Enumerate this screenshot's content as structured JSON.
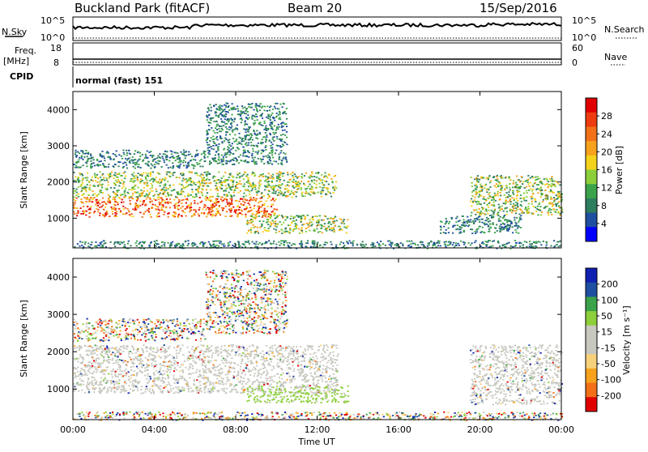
{
  "header": {
    "station": "Buckland Park (fitACF)",
    "beam": "Beam 20",
    "date": "15/Sep/2016"
  },
  "status_panels": {
    "nsky": {
      "label": "N.Sky",
      "ticks": [
        "10^5",
        "10^0"
      ]
    },
    "nsearch": {
      "label": "N.Search",
      "ticks": [
        "10^5",
        "10^0"
      ]
    },
    "freq": {
      "label_line1": "Freq.",
      "label_line2": "[MHz]",
      "ticks": [
        "18",
        "8"
      ]
    },
    "nave": {
      "label": "Nave",
      "ticks": [
        "60",
        "0"
      ]
    },
    "cpid": {
      "label": "CPID",
      "value": "normal (fast) 151"
    }
  },
  "colors": {
    "power_scale": [
      "#0000ff",
      "#1f4fa0",
      "#2e7d5e",
      "#3aa34a",
      "#8ccf3a",
      "#f4d21c",
      "#f6a21c",
      "#f27018",
      "#ee3c10",
      "#e00000"
    ],
    "velocity_scale": [
      "#e00000",
      "#f27018",
      "#f6a21c",
      "#f7d07a",
      "#c8c8c0",
      "#c8c8c0",
      "#8ccf3a",
      "#3aa34a",
      "#1f4fa0",
      "#1020b0"
    ]
  },
  "chart_data": [
    {
      "type": "heatmap",
      "name": "power",
      "xlabel": "",
      "ylabel": "Slant Range [km]",
      "ylim": [
        180,
        4500
      ],
      "yticks": [
        "1000",
        "2000",
        "3000",
        "4000"
      ],
      "xlim": [
        "00:00",
        "24:00"
      ],
      "colorbar": {
        "label": "Power [dB]",
        "ticks": [
          "28",
          "24",
          "20",
          "16",
          "12",
          "8",
          "4"
        ]
      },
      "regions": [
        {
          "t0": 0.0,
          "t1": 10.0,
          "r0": 1050,
          "r1": 1600,
          "level": "high"
        },
        {
          "t0": 0.0,
          "t1": 13.0,
          "r0": 1600,
          "r1": 2300,
          "level": "medium"
        },
        {
          "t0": 0.0,
          "t1": 6.5,
          "r0": 2400,
          "r1": 2900,
          "level": "low"
        },
        {
          "t0": 6.5,
          "t1": 10.5,
          "r0": 2500,
          "r1": 4200,
          "level": "low"
        },
        {
          "t0": 8.5,
          "t1": 13.5,
          "r0": 600,
          "r1": 1100,
          "level": "medium"
        },
        {
          "t0": 19.5,
          "t1": 24.0,
          "r0": 1100,
          "r1": 2200,
          "level": "medium"
        },
        {
          "t0": 18.0,
          "t1": 22.0,
          "r0": 600,
          "r1": 1100,
          "level": "low"
        },
        {
          "t0": 0.0,
          "t1": 24.0,
          "r0": 180,
          "r1": 400,
          "level": "low"
        }
      ]
    },
    {
      "type": "heatmap",
      "name": "velocity",
      "xlabel": "Time UT",
      "ylabel": "Slant Range [km]",
      "ylim": [
        180,
        4500
      ],
      "yticks": [
        "1000",
        "2000",
        "3000",
        "4000"
      ],
      "xticks": [
        "00:00",
        "04:00",
        "08:00",
        "12:00",
        "16:00",
        "20:00",
        "00:00"
      ],
      "colorbar": {
        "label": "Velocity [m s⁻¹]",
        "ticks": [
          "200",
          "100",
          "50",
          "15",
          "-15",
          "-50",
          "-100",
          "-200"
        ]
      },
      "regions": [
        {
          "t0": 0.0,
          "t1": 13.0,
          "r0": 900,
          "r1": 2200,
          "level": "ground"
        },
        {
          "t0": 8.5,
          "t1": 13.5,
          "r0": 650,
          "r1": 1100,
          "level": "positive"
        },
        {
          "t0": 6.5,
          "t1": 10.5,
          "r0": 2500,
          "r1": 4200,
          "level": "mixed"
        },
        {
          "t0": 0.0,
          "t1": 6.5,
          "r0": 2300,
          "r1": 2900,
          "level": "mixed"
        },
        {
          "t0": 19.5,
          "t1": 24.0,
          "r0": 600,
          "r1": 2200,
          "level": "ground"
        },
        {
          "t0": 0.0,
          "t1": 24.0,
          "r0": 180,
          "r1": 400,
          "level": "mixed"
        }
      ]
    }
  ]
}
